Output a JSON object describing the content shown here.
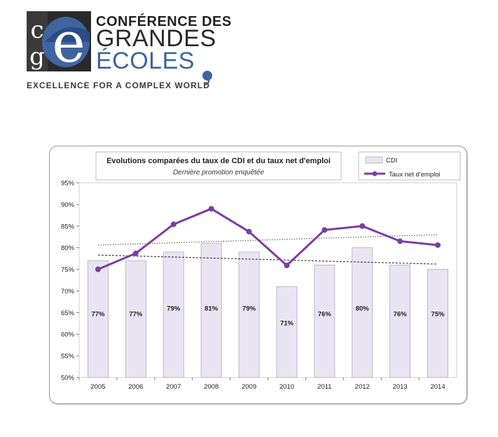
{
  "header": {
    "brand_line1": "CONFÉRENCE DES",
    "brand_line2": "GRANDES",
    "brand_line3": "ÉCOLES",
    "tagline": "EXCELLENCE FOR A COMPLEX WORLD",
    "logo_letters": "cge",
    "colors": {
      "dark": "#2a2a2a",
      "blue": "#3f64a0"
    }
  },
  "chart_data": {
    "type": "bar",
    "title": "Evolutions comparées du taux de CDI et du taux net d'emploi",
    "subtitle": "Dernière promotion enquêtée",
    "categories": [
      "2005",
      "2006",
      "2007",
      "2008",
      "2009",
      "2010",
      "2011",
      "2012",
      "2013",
      "2014"
    ],
    "series": [
      {
        "name": "CDI",
        "type": "bar",
        "color": "#e9e4f1",
        "values": [
          77,
          77,
          79,
          81,
          79,
          71,
          76,
          80,
          76,
          75
        ],
        "labels": [
          "77%",
          "77%",
          "79%",
          "81%",
          "79%",
          "71%",
          "76%",
          "80%",
          "76%",
          "75%"
        ]
      },
      {
        "name": "Taux net d'emploi",
        "type": "line",
        "color": "#7b3fa0",
        "values": [
          75.0,
          78.7,
          85.4,
          89.0,
          83.7,
          75.9,
          84.1,
          85.0,
          81.5,
          80.6
        ]
      }
    ],
    "trendlines": [
      {
        "of": "Taux net d'emploi",
        "from": 80.6,
        "to": 83.0,
        "style": "dotted"
      },
      {
        "of": "CDI",
        "from": 78.3,
        "to": 76.2,
        "style": "dashed"
      }
    ],
    "ylim": [
      50,
      95
    ],
    "yticks": [
      "50%",
      "55%",
      "60%",
      "65%",
      "70%",
      "75%",
      "80%",
      "85%",
      "90%",
      "95%"
    ],
    "legend_position": "top-right",
    "grid": false
  }
}
